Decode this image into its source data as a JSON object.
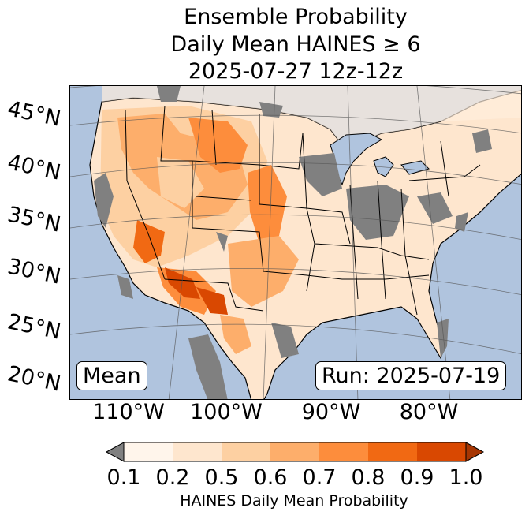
{
  "title": {
    "line1": "Ensemble Probability",
    "line2": "Daily Mean HAINES ≥ 6",
    "line3": "2025-07-27 12z-12z"
  },
  "map": {
    "lat_labels": [
      "45°N",
      "40°N",
      "35°N",
      "30°N",
      "25°N",
      "20°N"
    ],
    "lon_labels": [
      "110°W",
      "100°W",
      "90°W",
      "80°W"
    ],
    "stat_label": "Mean",
    "run_label": "Run: 2025-07-19",
    "colors": {
      "ocean": "#b0c4de",
      "missing": "#808080",
      "borders": "#000000"
    }
  },
  "colorbar": {
    "ticks": [
      "0.1",
      "0.2",
      "0.5",
      "0.6",
      "0.7",
      "0.8",
      "0.9",
      "1.0"
    ],
    "colors": [
      "#808080",
      "#fff5eb",
      "#fee6ce",
      "#fdd0a2",
      "#fdae6b",
      "#fd8d3c",
      "#f16913",
      "#d94801",
      "#a63603"
    ],
    "label": "HAINES Daily Mean Probability"
  }
}
